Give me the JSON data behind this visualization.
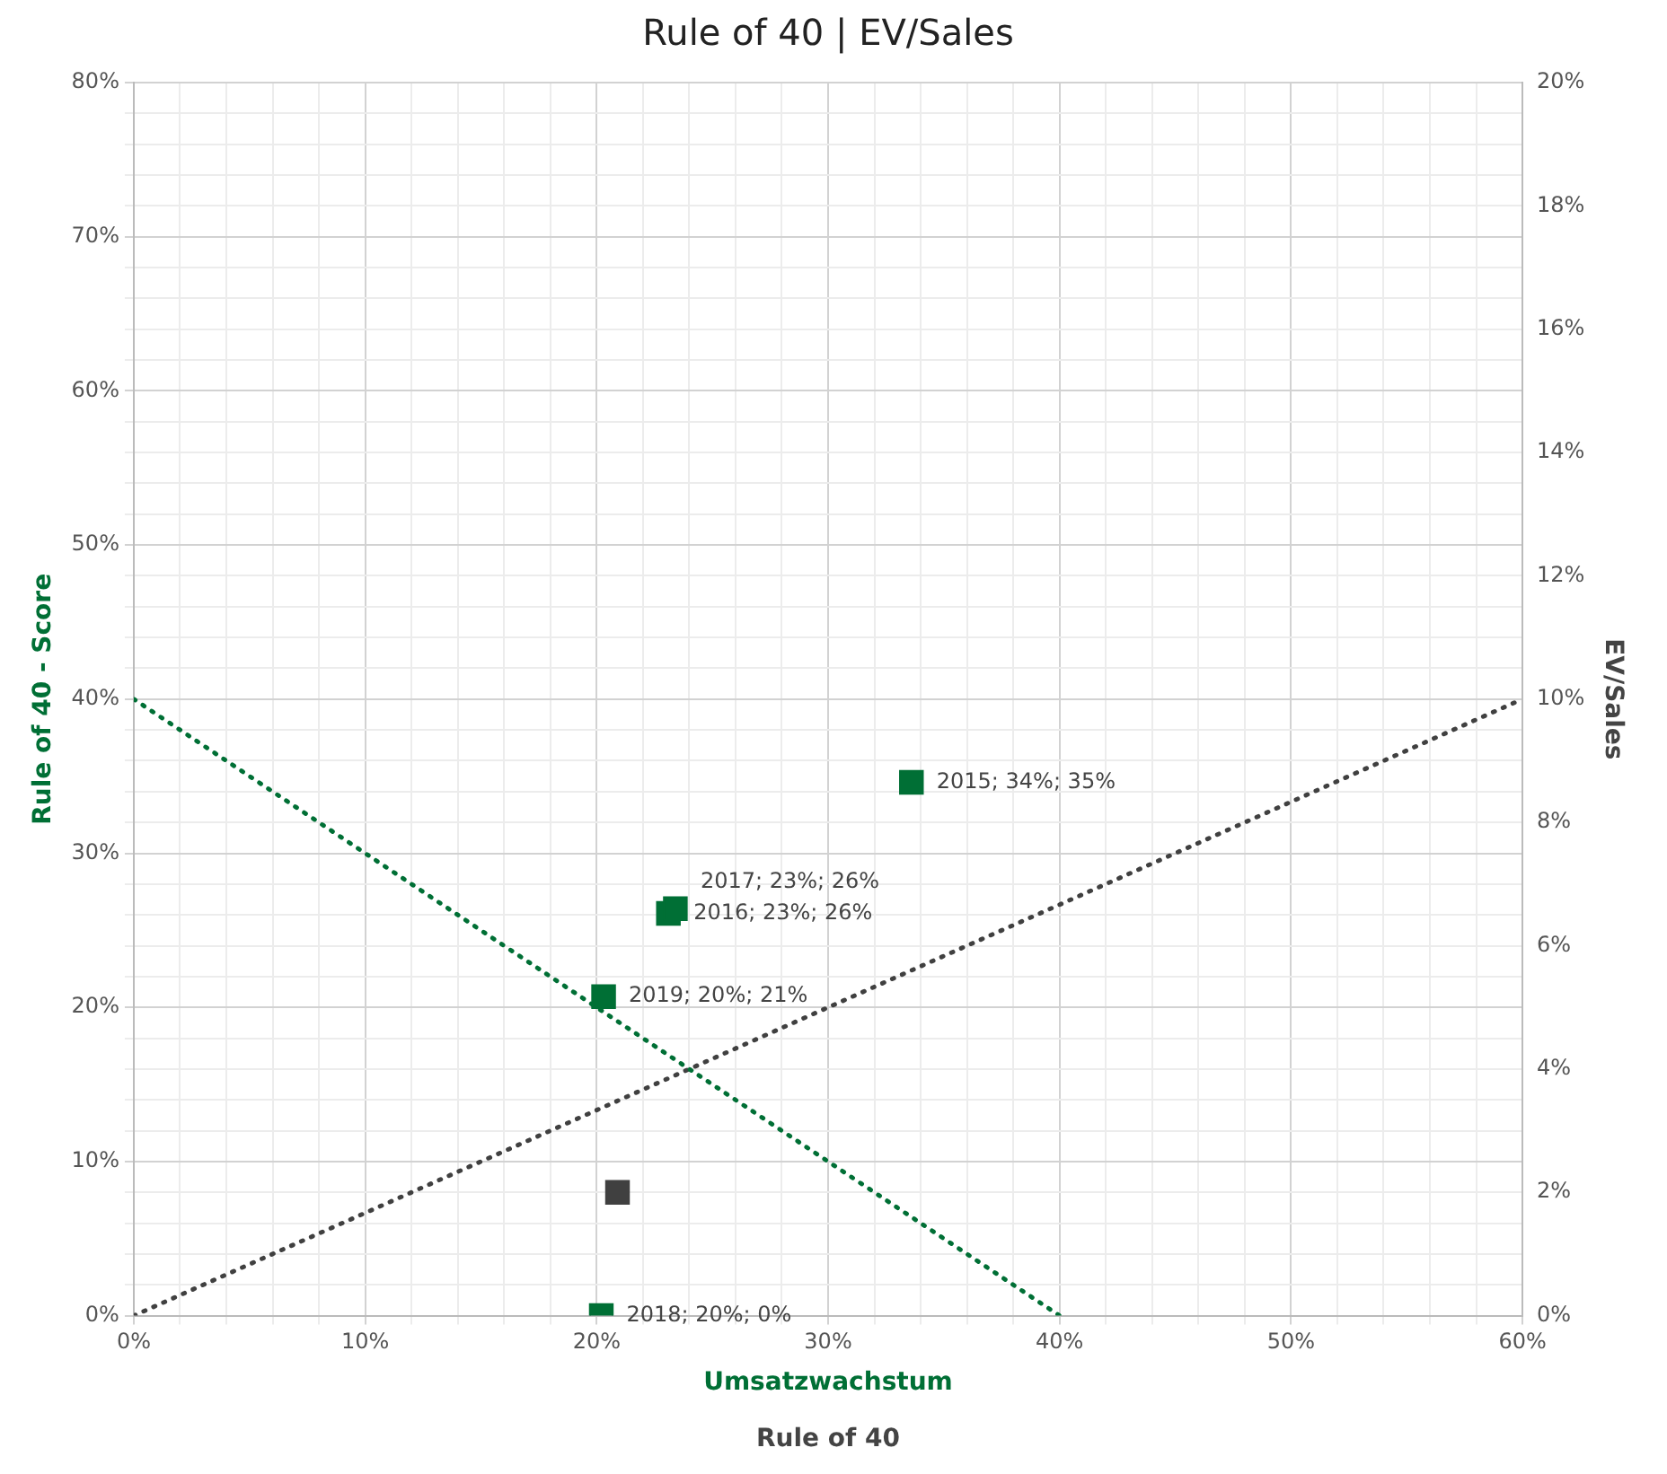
{
  "chart_data": {
    "type": "scatter",
    "title": "Rule of 40 | EV/Sales",
    "xlabel": "Umsatzwachstum",
    "ylabel": "Rule of 40 - Score",
    "y2label": "EV/Sales",
    "annotations": [
      "Rule of 40"
    ],
    "grid": true,
    "legend": false,
    "xlim": [
      0,
      60
    ],
    "ylim": [
      0,
      80
    ],
    "y2lim": [
      0,
      20
    ],
    "xticks": [
      {
        "value": 0,
        "label": "0%"
      },
      {
        "value": 2,
        "label": null
      },
      {
        "value": 4,
        "label": null
      },
      {
        "value": 6,
        "label": null
      },
      {
        "value": 8,
        "label": null
      },
      {
        "value": 10,
        "label": "10%"
      },
      {
        "value": 12,
        "label": null
      },
      {
        "value": 14,
        "label": null
      },
      {
        "value": 16,
        "label": null
      },
      {
        "value": 18,
        "label": null
      },
      {
        "value": 20,
        "label": "20%"
      },
      {
        "value": 22,
        "label": null
      },
      {
        "value": 24,
        "label": null
      },
      {
        "value": 26,
        "label": null
      },
      {
        "value": 28,
        "label": null
      },
      {
        "value": 30,
        "label": "30%"
      },
      {
        "value": 32,
        "label": null
      },
      {
        "value": 34,
        "label": null
      },
      {
        "value": 36,
        "label": null
      },
      {
        "value": 38,
        "label": null
      },
      {
        "value": 40,
        "label": "40%"
      },
      {
        "value": 42,
        "label": null
      },
      {
        "value": 44,
        "label": null
      },
      {
        "value": 46,
        "label": null
      },
      {
        "value": 48,
        "label": null
      },
      {
        "value": 50,
        "label": "50%"
      },
      {
        "value": 52,
        "label": null
      },
      {
        "value": 54,
        "label": null
      },
      {
        "value": 56,
        "label": null
      },
      {
        "value": 58,
        "label": null
      },
      {
        "value": 60,
        "label": "60%"
      }
    ],
    "yticks": [
      {
        "value": 0,
        "label": "0%"
      },
      {
        "value": 2,
        "label": null
      },
      {
        "value": 4,
        "label": null
      },
      {
        "value": 6,
        "label": null
      },
      {
        "value": 8,
        "label": null
      },
      {
        "value": 10,
        "label": "10%"
      },
      {
        "value": 12,
        "label": null
      },
      {
        "value": 14,
        "label": null
      },
      {
        "value": 16,
        "label": null
      },
      {
        "value": 18,
        "label": null
      },
      {
        "value": 20,
        "label": "20%"
      },
      {
        "value": 22,
        "label": null
      },
      {
        "value": 24,
        "label": null
      },
      {
        "value": 26,
        "label": null
      },
      {
        "value": 28,
        "label": null
      },
      {
        "value": 30,
        "label": "30%"
      },
      {
        "value": 32,
        "label": null
      },
      {
        "value": 34,
        "label": null
      },
      {
        "value": 36,
        "label": null
      },
      {
        "value": 38,
        "label": null
      },
      {
        "value": 40,
        "label": "40%"
      },
      {
        "value": 42,
        "label": null
      },
      {
        "value": 44,
        "label": null
      },
      {
        "value": 46,
        "label": null
      },
      {
        "value": 48,
        "label": null
      },
      {
        "value": 50,
        "label": "50%"
      },
      {
        "value": 52,
        "label": null
      },
      {
        "value": 54,
        "label": null
      },
      {
        "value": 56,
        "label": null
      },
      {
        "value": 58,
        "label": null
      },
      {
        "value": 60,
        "label": "60%"
      },
      {
        "value": 62,
        "label": null
      },
      {
        "value": 64,
        "label": null
      },
      {
        "value": 66,
        "label": null
      },
      {
        "value": 68,
        "label": null
      },
      {
        "value": 70,
        "label": "70%"
      },
      {
        "value": 72,
        "label": null
      },
      {
        "value": 74,
        "label": null
      },
      {
        "value": 76,
        "label": null
      },
      {
        "value": 78,
        "label": null
      },
      {
        "value": 80,
        "label": "80%"
      }
    ],
    "y2ticks": [
      {
        "value": 0,
        "label": "0%"
      },
      {
        "value": 2,
        "label": "2%"
      },
      {
        "value": 4,
        "label": "4%"
      },
      {
        "value": 6,
        "label": "6%"
      },
      {
        "value": 8,
        "label": "8%"
      },
      {
        "value": 10,
        "label": "10%"
      },
      {
        "value": 12,
        "label": "12%"
      },
      {
        "value": 14,
        "label": "14%"
      },
      {
        "value": 16,
        "label": "16%"
      },
      {
        "value": 18,
        "label": "18%"
      },
      {
        "value": 20,
        "label": "20%"
      }
    ],
    "series": [
      {
        "type": "line",
        "marker": "none",
        "color": "#006f35",
        "line_style": "dotted",
        "x": [
          0,
          40
        ],
        "values": [
          40,
          0
        ]
      },
      {
        "type": "line",
        "marker": "none",
        "axis": "y2",
        "color": "#404040",
        "line_style": "dotted",
        "x": [
          0,
          60
        ],
        "values": [
          0,
          10
        ]
      },
      {
        "type": "scatter",
        "marker": "square",
        "color": "#006f35",
        "x": [
          33.6,
          23.1,
          23.4,
          20.2,
          20.3
        ],
        "values": [
          34.6,
          26.1,
          26.4,
          0,
          20.7
        ],
        "value_labels": [
          "2015; 34%; 35%",
          "2016; 23%; 26%",
          "2017; 23%; 26%",
          "2018; 20%; 0%",
          "2019; 20%; 21%"
        ]
      },
      {
        "type": "scatter",
        "marker": "square",
        "axis": "y2",
        "color": "#404040",
        "x": [
          20.9
        ],
        "values": [
          2.0
        ]
      }
    ]
  }
}
